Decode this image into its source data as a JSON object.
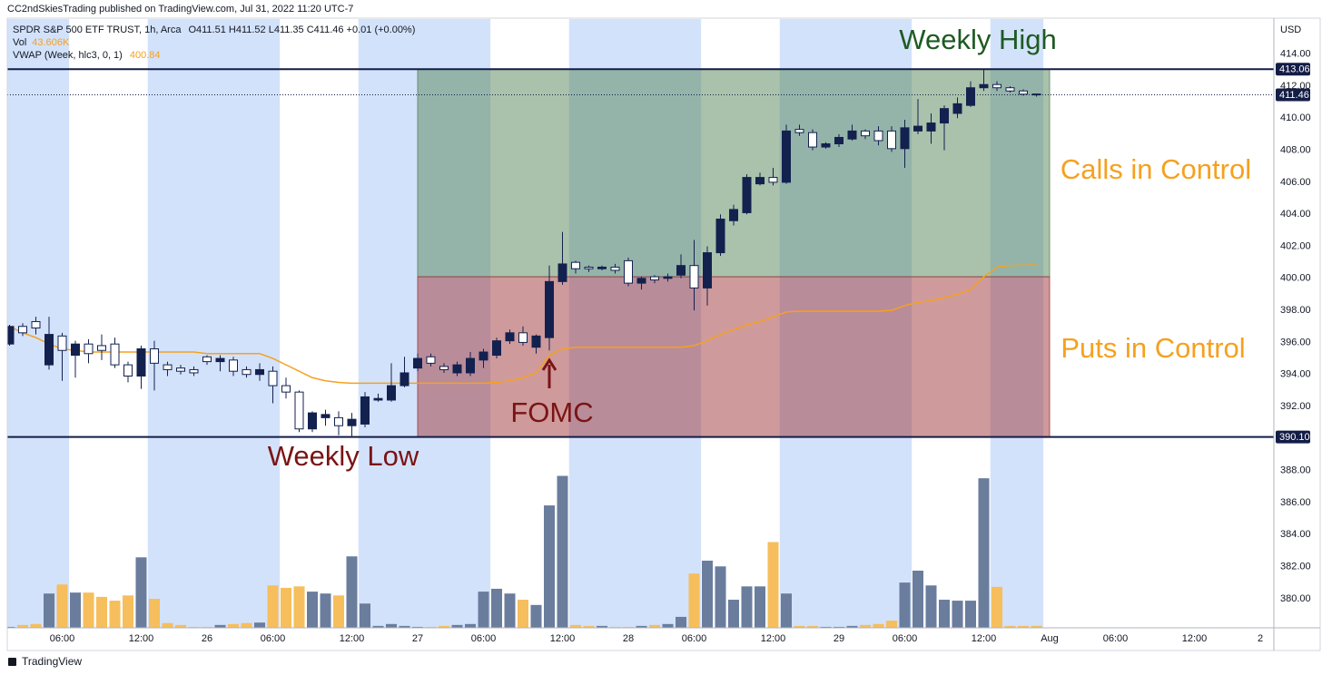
{
  "header": "CC2ndSkiesTrading published on TradingView.com, Jul 31, 2022 11:20 UTC-7",
  "footer": "TradingView",
  "chart_data": {
    "type": "candlestick",
    "legend": {
      "symbol": "SPDR S&P 500 ETF TRUST, 1h, Arca",
      "ohlc": "O411.51  H411.52  L411.35  C411.46  +0.01 (+0.00%)",
      "volume_name": "Vol",
      "volume": "43.606K",
      "vwap_name": "VWAP (Week, hlc3, 0, 1)"
    },
    "axis_label": "USD",
    "categories": [
      null,
      null,
      null,
      null,
      "06:00",
      null,
      null,
      null,
      null,
      null,
      "12:00",
      null,
      null,
      null,
      null,
      "26",
      null,
      null,
      null,
      null,
      "06:00",
      null,
      null,
      null,
      null,
      null,
      "12:00",
      null,
      null,
      null,
      null,
      "27",
      null,
      null,
      null,
      null,
      "06:00",
      null,
      null,
      null,
      null,
      null,
      "12:00",
      null,
      null,
      null,
      null,
      "28",
      null,
      null,
      null,
      null,
      "06:00",
      null,
      null,
      null,
      null,
      null,
      "12:00",
      null,
      null,
      null,
      null,
      "29",
      null,
      null,
      null,
      null,
      "06:00",
      null,
      null,
      null,
      null,
      null,
      "12:00",
      null,
      null,
      null,
      null,
      "Aug",
      null,
      null,
      null,
      null,
      "06:00",
      null,
      null,
      null,
      null,
      null,
      "12:00",
      null,
      null,
      null,
      null,
      "2"
    ],
    "open": [
      395.9,
      397.0,
      397.3,
      394.6,
      396.4,
      395.2,
      395.9,
      395.8,
      395.9,
      394.6,
      393.9,
      395.6,
      394.6,
      394.4,
      394.3,
      395.1,
      394.8,
      394.9,
      394.3,
      394.0,
      394.2,
      393.3,
      392.9,
      390.6,
      391.3,
      391.3,
      390.8,
      390.9,
      392.4,
      392.4,
      393.3,
      394.4,
      395.1,
      394.5,
      394.1,
      394.1,
      394.9,
      395.2,
      396.1,
      396.6,
      395.7,
      396.3,
      399.8,
      401.0,
      400.7,
      400.6,
      400.7,
      401.1,
      399.7,
      400.1,
      400.0,
      400.2,
      400.8,
      399.4,
      401.6,
      403.6,
      404.1,
      405.9,
      406.3,
      406.0,
      409.3,
      409.1,
      408.2,
      408.4,
      408.7,
      409.2,
      409.2,
      409.2,
      408.1,
      409.2,
      409.2,
      409.7,
      410.3,
      410.8,
      411.9,
      412.1,
      411.9,
      411.7,
      411.51,
      null,
      null,
      null,
      null,
      null,
      null,
      null,
      null,
      null,
      null,
      null,
      null,
      null,
      null,
      null,
      null,
      null
    ],
    "high": [
      397.1,
      397.2,
      397.6,
      397.6,
      396.6,
      396.1,
      396.2,
      396.5,
      396.3,
      394.8,
      395.8,
      396.1,
      394.8,
      394.6,
      394.5,
      395.2,
      395.2,
      395.1,
      394.5,
      394.7,
      394.5,
      393.8,
      393.0,
      391.7,
      391.8,
      391.7,
      391.6,
      392.9,
      392.8,
      394.7,
      395.1,
      395.3,
      395.3,
      394.7,
      394.8,
      395.4,
      395.6,
      396.3,
      396.8,
      397.0,
      396.5,
      400.8,
      402.9,
      401.1,
      400.8,
      400.8,
      400.9,
      401.3,
      400.1,
      400.2,
      400.3,
      401.5,
      402.4,
      402.0,
      404.0,
      404.6,
      406.5,
      406.6,
      406.9,
      409.6,
      409.6,
      409.3,
      408.5,
      409.0,
      409.6,
      409.3,
      409.5,
      409.5,
      409.9,
      411.2,
      410.3,
      410.8,
      411.3,
      412.3,
      413.06,
      412.3,
      412.0,
      411.8,
      411.52,
      null,
      null,
      null,
      null,
      null,
      null,
      null,
      null,
      null,
      null,
      null,
      null,
      null,
      null,
      null,
      null,
      null
    ],
    "low": [
      395.8,
      396.4,
      396.5,
      394.3,
      393.6,
      393.8,
      394.7,
      394.9,
      394.4,
      393.5,
      393.1,
      393.0,
      393.9,
      394.0,
      393.9,
      394.6,
      394.2,
      393.9,
      393.8,
      393.6,
      392.2,
      392.5,
      390.4,
      390.4,
      390.8,
      390.2,
      390.1,
      390.7,
      392.3,
      392.3,
      393.2,
      394.2,
      394.5,
      394.1,
      393.9,
      393.9,
      394.4,
      395.0,
      395.9,
      395.8,
      395.3,
      395.5,
      399.6,
      400.3,
      400.4,
      400.5,
      400.3,
      399.5,
      399.3,
      399.7,
      399.8,
      400.0,
      398.0,
      398.3,
      401.4,
      403.3,
      404.0,
      405.8,
      405.8,
      405.9,
      408.9,
      408.0,
      408.1,
      408.2,
      408.6,
      408.7,
      408.3,
      407.9,
      406.9,
      409.0,
      408.4,
      408.0,
      410.0,
      410.7,
      411.7,
      411.7,
      411.6,
      411.4,
      411.35,
      null,
      null,
      null,
      null,
      null,
      null,
      null,
      null,
      null,
      null,
      null,
      null,
      null,
      null,
      null,
      null,
      null
    ],
    "close": [
      397.0,
      396.6,
      396.9,
      396.5,
      395.5,
      395.9,
      395.3,
      395.5,
      394.6,
      393.9,
      395.6,
      394.7,
      394.3,
      394.2,
      394.1,
      394.8,
      395.0,
      394.2,
      394.0,
      394.3,
      393.3,
      392.9,
      390.6,
      391.6,
      391.5,
      390.8,
      391.2,
      392.6,
      392.5,
      393.3,
      394.1,
      395.0,
      394.7,
      394.3,
      394.6,
      395.0,
      395.4,
      396.1,
      396.6,
      396.0,
      396.4,
      399.8,
      400.9,
      400.6,
      400.6,
      400.7,
      400.5,
      399.7,
      400.0,
      399.9,
      400.1,
      400.8,
      399.4,
      401.6,
      403.7,
      404.3,
      406.3,
      406.3,
      406.0,
      409.2,
      409.1,
      408.2,
      408.4,
      408.8,
      409.2,
      408.9,
      408.6,
      408.1,
      409.4,
      409.5,
      409.7,
      410.6,
      410.9,
      411.9,
      412.1,
      411.9,
      411.7,
      411.5,
      411.46,
      null,
      null,
      null,
      null,
      null,
      null,
      null,
      null,
      null,
      null,
      null,
      null,
      null,
      null,
      null,
      null,
      null
    ],
    "volume": [
      20,
      60,
      80,
      720,
      910,
      740,
      740,
      650,
      570,
      680,
      1480,
      610,
      100,
      60,
      20,
      20,
      60,
      80,
      100,
      110,
      890,
      840,
      870,
      760,
      720,
      680,
      1500,
      510,
      40,
      80,
      40,
      20,
      20,
      40,
      60,
      80,
      760,
      820,
      720,
      590,
      480,
      2570,
      3190,
      60,
      40,
      40,
      20,
      20,
      40,
      60,
      80,
      230,
      1140,
      1410,
      1290,
      590,
      870,
      870,
      1800,
      720,
      40,
      40,
      20,
      20,
      40,
      60,
      80,
      150,
      950,
      1200,
      890,
      590,
      570,
      570,
      3140,
      860,
      40,
      40,
      43.606,
      null,
      null,
      null,
      null,
      null,
      null,
      null,
      null,
      null,
      null,
      null,
      null,
      null,
      null,
      null,
      null,
      null
    ],
    "vwap": [
      397.0,
      396.6,
      396.3,
      395.9,
      395.6,
      395.5,
      395.4,
      395.4,
      395.4,
      395.4,
      395.4,
      395.4,
      395.4,
      395.4,
      395.4,
      395.3,
      395.3,
      395.3,
      395.3,
      395.3,
      395.0,
      394.6,
      394.2,
      393.8,
      393.6,
      393.5,
      393.45,
      393.45,
      393.45,
      393.45,
      393.45,
      393.45,
      393.45,
      393.45,
      393.45,
      393.45,
      393.45,
      393.5,
      393.6,
      393.8,
      394.1,
      395.2,
      395.6,
      395.7,
      395.7,
      395.7,
      395.7,
      395.7,
      395.7,
      395.7,
      395.7,
      395.7,
      395.8,
      396.1,
      396.5,
      396.8,
      397.1,
      397.3,
      397.6,
      397.9,
      397.95,
      397.95,
      397.95,
      397.95,
      397.95,
      397.95,
      397.95,
      398.0,
      398.3,
      398.5,
      398.6,
      398.8,
      399.0,
      399.3,
      400.1,
      400.7,
      400.8,
      400.82,
      400.84,
      null,
      null,
      null,
      null,
      null,
      null,
      null,
      null,
      null,
      null,
      null,
      null,
      null,
      null,
      null,
      null,
      null
    ],
    "ylim": [
      378.18,
      416.19
    ],
    "yticks": [
      {
        "value": 380,
        "label": "380.00"
      },
      {
        "value": 382,
        "label": "382.00"
      },
      {
        "value": 384,
        "label": "384.00"
      },
      {
        "value": 386,
        "label": "386.00"
      },
      {
        "value": 388,
        "label": "388.00"
      },
      {
        "value": 392,
        "label": "392.00"
      },
      {
        "value": 394,
        "label": "394.00"
      },
      {
        "value": 396,
        "label": "396.00"
      },
      {
        "value": 398,
        "label": "398.00"
      },
      {
        "value": 400,
        "label": "400.00"
      },
      {
        "value": 402,
        "label": "402.00"
      },
      {
        "value": 404,
        "label": "404.00"
      },
      {
        "value": 406,
        "label": "406.00"
      },
      {
        "value": 408,
        "label": "408.00"
      },
      {
        "value": 410,
        "label": "410.00"
      },
      {
        "value": 412,
        "label": "412.00"
      },
      {
        "value": 414,
        "label": "414.00"
      }
    ],
    "volume_lim": [
      0,
      4000
    ],
    "grid": false,
    "levels": [
      {
        "value": 413.06,
        "label": "413.06"
      },
      {
        "value": 390.1,
        "label": "390.10"
      }
    ],
    "zones": [
      {
        "range": [
          400.1,
          413.06
        ],
        "color": "#55855a"
      },
      {
        "range": [
          390.1,
          400.1
        ],
        "color": "#a0353a"
      }
    ],
    "annotations": [
      {
        "text": "Weekly High",
        "color": "#1e5a22"
      },
      {
        "text": "Weekly Low",
        "color": "#7a1414"
      },
      {
        "text": "FOMC",
        "color": "#7a1414"
      },
      {
        "text": "Calls in Control",
        "color": "#f5a11f"
      },
      {
        "text": "Puts in Control",
        "color": "#f5a11f"
      }
    ],
    "up_color": "#13214f",
    "down_color": "#ffffff",
    "volume_up_color": "#6a7d9d",
    "volume_down_color": "#f6be5c",
    "vwap_color": "#f5a11f",
    "session_color": "#d3e2fb",
    "level_color": "#131d46"
  }
}
